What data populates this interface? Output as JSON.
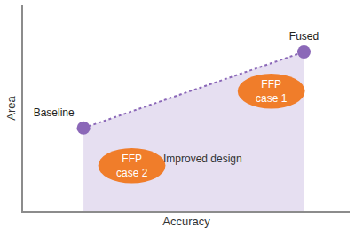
{
  "chart_data": {
    "type": "scatter",
    "x_label": "Accuracy",
    "y_label": "Area",
    "x": [
      18.5,
      86
    ],
    "values": [
      40.4,
      77.4
    ],
    "point_labels": [
      "Baseline",
      "Fused"
    ],
    "color": "#8b68b8",
    "fill_color": "#e6dff1",
    "line_style": "dot",
    "marker": "circle",
    "xlim": [
      0,
      100
    ],
    "ylim": [
      0,
      100
    ],
    "xticks": [],
    "yticks": [],
    "tick_labels": false,
    "grid": false,
    "annotations": [
      {
        "text": "FFP case 1",
        "x": 76,
        "y": 58.3,
        "color": "#f07d2a"
      },
      {
        "text": "FFP case 2",
        "x": 33.3,
        "y": 22.1,
        "color": "#f07d2a"
      },
      {
        "text": "Improved design",
        "x": 55,
        "y": 25.5
      }
    ]
  }
}
